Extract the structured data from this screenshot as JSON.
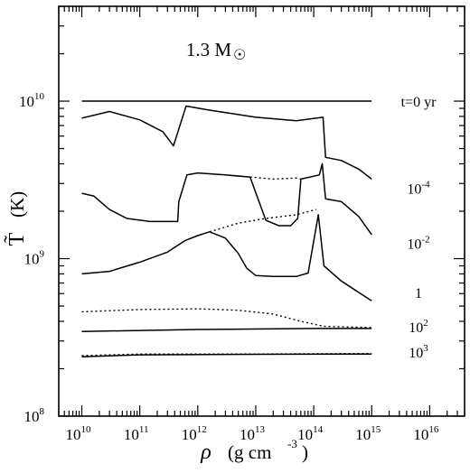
{
  "chart_data": {
    "type": "line",
    "title": "1.3 M",
    "title_symbol": "☉",
    "xlabel": "ρ",
    "xunit": "(g cm",
    "xunit_exp": "-3",
    "xunit_close": ")",
    "ylabel": "T̃",
    "yunit": "(K)",
    "xscale": "log",
    "yscale": "log",
    "xlim": [
      4000000000.0,
      4e+16
    ],
    "ylim": [
      100000000.0,
      40000000000.0
    ],
    "xticks": [
      {
        "base": "10",
        "exp": "10",
        "value": 10000000000.0
      },
      {
        "base": "10",
        "exp": "11",
        "value": 100000000000.0
      },
      {
        "base": "10",
        "exp": "12",
        "value": 1000000000000.0
      },
      {
        "base": "10",
        "exp": "13",
        "value": 10000000000000.0
      },
      {
        "base": "10",
        "exp": "14",
        "value": 100000000000000.0
      },
      {
        "base": "10",
        "exp": "15",
        "value": 1000000000000000.0
      },
      {
        "base": "10",
        "exp": "16",
        "value": 1e+16
      }
    ],
    "yticks": [
      {
        "base": "10",
        "exp": "8",
        "value": 100000000.0
      },
      {
        "base": "10",
        "exp": "9",
        "value": 1000000000.0
      },
      {
        "base": "10",
        "exp": "10",
        "value": 10000000000.0
      }
    ],
    "curve_labels": [
      {
        "base": "t=0 yr",
        "exp": "",
        "y": 10000000000.0
      },
      {
        "base": "10",
        "exp": "-4",
        "y": 2800000000.0
      },
      {
        "base": "10",
        "exp": "-2",
        "y": 1250000000.0
      },
      {
        "base": "1",
        "exp": "",
        "y": 610000000.0
      },
      {
        "base": "10",
        "exp": "2",
        "y": 370000000.0
      },
      {
        "base": "10",
        "exp": "3",
        "y": 255000000.0
      }
    ],
    "series": [
      {
        "label": "t=0 yr",
        "style": "solid",
        "points": [
          [
            10000000000.0,
            10000000000.0
          ],
          [
            1000000000000000.0,
            10000000000.0
          ]
        ]
      },
      {
        "label": "t=0 yr",
        "style": "solid",
        "points": [
          [
            10000000000.0,
            7800000000.0
          ],
          [
            30000000000.0,
            8600000000.0
          ],
          [
            100000000000.0,
            7600000000.0
          ],
          [
            250000000000.0,
            6400000000.0
          ],
          [
            380000000000.0,
            5200000000.0
          ],
          [
            630000000000.0,
            9300000000.0
          ],
          [
            1500000000000.0,
            8800000000.0
          ],
          [
            10000000000000.0,
            7900000000.0
          ],
          [
            50000000000000.0,
            7500000000.0
          ],
          [
            145000000000000.0,
            7900000000.0
          ],
          [
            160000000000000.0,
            4400000000.0
          ],
          [
            300000000000000.0,
            4200000000.0
          ],
          [
            600000000000000.0,
            3700000000.0
          ],
          [
            1000000000000000.0,
            3200000000.0
          ]
        ]
      },
      {
        "label": "10^-4",
        "style": "solid",
        "points": [
          [
            10000000000.0,
            2600000000.0
          ],
          [
            16000000000.0,
            2500000000.0
          ],
          [
            30000000000.0,
            2050000000.0
          ],
          [
            60000000000.0,
            1800000000.0
          ],
          [
            150000000000.0,
            1720000000.0
          ],
          [
            450000000000.0,
            1720000000.0
          ],
          [
            470000000000.0,
            2300000000.0
          ],
          [
            650000000000.0,
            3400000000.0
          ],
          [
            1000000000000.0,
            3500000000.0
          ],
          [
            3000000000000.0,
            3400000000.0
          ],
          [
            8000000000000.0,
            3300000000.0
          ],
          [
            10500000000000.0,
            2500000000.0
          ],
          [
            15000000000000.0,
            1750000000.0
          ],
          [
            25000000000000.0,
            1620000000.0
          ],
          [
            40000000000000.0,
            1620000000.0
          ],
          [
            53000000000000.0,
            1800000000.0
          ],
          [
            60000000000000.0,
            3200000000.0
          ],
          [
            125000000000000.0,
            3400000000.0
          ],
          [
            140000000000000.0,
            4000000000.0
          ],
          [
            160000000000000.0,
            2400000000.0
          ],
          [
            300000000000000.0,
            2300000000.0
          ],
          [
            600000000000000.0,
            1850000000.0
          ],
          [
            1000000000000000.0,
            1420000000.0
          ]
        ]
      },
      {
        "label": "10^-4 dotted",
        "style": "dotted",
        "points": [
          [
            8000000000000.0,
            3300000000.0
          ],
          [
            20000000000000.0,
            3200000000.0
          ],
          [
            50000000000000.0,
            3250000000.0
          ],
          [
            60000000000000.0,
            3200000000.0
          ]
        ]
      },
      {
        "label": "10^-2",
        "style": "solid",
        "points": [
          [
            10000000000.0,
            800000000.0
          ],
          [
            30000000000.0,
            830000000.0
          ],
          [
            100000000000.0,
            950000000.0
          ],
          [
            300000000000.0,
            1100000000.0
          ],
          [
            600000000000.0,
            1300000000.0
          ],
          [
            1000000000000.0,
            1400000000.0
          ],
          [
            1600000000000.0,
            1480000000.0
          ],
          [
            3000000000000.0,
            1350000000.0
          ],
          [
            5000000000000.0,
            1080000000.0
          ],
          [
            7000000000000.0,
            870000000.0
          ],
          [
            10000000000000.0,
            780000000.0
          ],
          [
            20000000000000.0,
            770000000.0
          ],
          [
            50000000000000.0,
            770000000.0
          ],
          [
            80000000000000.0,
            810000000.0
          ],
          [
            120000000000000.0,
            1900000000.0
          ],
          [
            150000000000000.0,
            900000000.0
          ],
          [
            300000000000000.0,
            720000000.0
          ],
          [
            1000000000000000.0,
            540000000.0
          ]
        ]
      },
      {
        "label": "10^-2 dotted",
        "style": "dotted",
        "points": [
          [
            1600000000000.0,
            1480000000.0
          ],
          [
            5000000000000.0,
            1680000000.0
          ],
          [
            15000000000000.0,
            1800000000.0
          ],
          [
            50000000000000.0,
            1900000000.0
          ],
          [
            110000000000000.0,
            2050000000.0
          ]
        ]
      },
      {
        "label": "1",
        "style": "dotted",
        "points": [
          [
            10000000000.0,
            460000000.0
          ],
          [
            100000000000.0,
            475000000.0
          ],
          [
            1000000000000.0,
            480000000.0
          ],
          [
            5000000000000.0,
            470000000.0
          ],
          [
            20000000000000.0,
            445000000.0
          ],
          [
            60000000000000.0,
            400000000.0
          ],
          [
            150000000000000.0,
            372000000.0
          ],
          [
            1000000000000000.0,
            365000000.0
          ]
        ]
      },
      {
        "label": "10^2",
        "style": "solid",
        "points": [
          [
            10000000000.0,
            345000000.0
          ],
          [
            1000000000000.0,
            355000000.0
          ],
          [
            100000000000000.0,
            360000000.0
          ],
          [
            1000000000000000.0,
            360000000.0
          ]
        ]
      },
      {
        "label": "10^3",
        "style": "dotted",
        "points": [
          [
            10000000000.0,
            242000000.0
          ],
          [
            100000000000.0,
            248000000.0
          ],
          [
            10000000000000.0,
            248000000.0
          ],
          [
            1000000000000000.0,
            250000000.0
          ]
        ]
      },
      {
        "label": "10^3",
        "style": "solid",
        "points": [
          [
            10000000000.0,
            238000000.0
          ],
          [
            100000000000.0,
            245000000.0
          ],
          [
            10000000000000.0,
            247000000.0
          ],
          [
            1000000000000000.0,
            248000000.0
          ]
        ]
      }
    ]
  }
}
